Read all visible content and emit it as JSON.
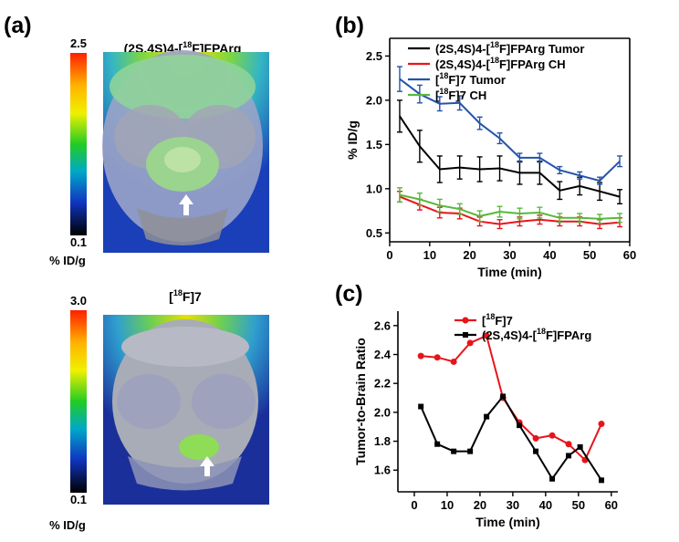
{
  "panels": {
    "a": {
      "label": "(a)",
      "top": {
        "title_prefix": "(2S,4S)4-[",
        "title_sup": "18",
        "title_suffix": "F]FPArg",
        "scale_max": "2.5",
        "scale_min": "0.1",
        "unit": "% ID/g"
      },
      "bottom": {
        "title_prefix": "[",
        "title_sup": "18",
        "title_suffix": "F]7",
        "scale_max": "3.0",
        "scale_min": "0.1",
        "unit": "% ID/g"
      }
    },
    "b": {
      "label": "(b)"
    },
    "c": {
      "label": "(c)"
    }
  },
  "colors": {
    "black": "#000000",
    "red": "#e8141b",
    "blue": "#2553a8",
    "green": "#57b93a"
  },
  "chart_data": [
    {
      "id": "b",
      "type": "line",
      "xlabel": "Time (min)",
      "ylabel": "% ID/g",
      "xlim": [
        0,
        60
      ],
      "ylim": [
        0.4,
        2.7
      ],
      "xticks": [
        0,
        10,
        20,
        30,
        40,
        50,
        60
      ],
      "yticks": [
        0.5,
        1.0,
        1.5,
        2.0,
        2.5
      ],
      "ytick_labels": [
        "0.5",
        "1.0",
        "1.5",
        "2.0",
        "2.5"
      ],
      "x": [
        2.5,
        7.5,
        12.5,
        17.5,
        22.5,
        27.5,
        32.5,
        37.5,
        42.5,
        47.5,
        52.5,
        57.5
      ],
      "series": [
        {
          "name": "(2S,4S)4-[18F]FPArg Tumor",
          "legend_prefix": "(2S,4S)4-[",
          "legend_sup": "18",
          "legend_suffix": "F]FPArg Tumor",
          "color": "#000000",
          "values": [
            1.82,
            1.48,
            1.22,
            1.24,
            1.22,
            1.23,
            1.18,
            1.18,
            0.98,
            1.03,
            0.97,
            0.91
          ],
          "errors": [
            0.18,
            0.18,
            0.15,
            0.13,
            0.14,
            0.14,
            0.13,
            0.13,
            0.1,
            0.1,
            0.1,
            0.08
          ]
        },
        {
          "name": "(2S,4S)4-[18F]FPArg CH",
          "legend_prefix": "(2S,4S)4-[",
          "legend_sup": "18",
          "legend_suffix": "F]FPArg CH",
          "color": "#e8141b",
          "values": [
            0.91,
            0.82,
            0.73,
            0.72,
            0.63,
            0.6,
            0.63,
            0.65,
            0.63,
            0.63,
            0.6,
            0.62
          ],
          "errors": [
            0.06,
            0.06,
            0.06,
            0.06,
            0.05,
            0.05,
            0.05,
            0.05,
            0.05,
            0.05,
            0.05,
            0.05
          ]
        },
        {
          "name": "[18F]7 Tumor",
          "legend_prefix": "[",
          "legend_sup": "18",
          "legend_suffix": "F]7 Tumor",
          "color": "#2553a8",
          "values": [
            2.24,
            2.07,
            1.96,
            1.97,
            1.74,
            1.57,
            1.35,
            1.35,
            1.21,
            1.15,
            1.09,
            1.31
          ],
          "errors": [
            0.14,
            0.1,
            0.08,
            0.08,
            0.07,
            0.06,
            0.05,
            0.05,
            0.04,
            0.04,
            0.04,
            0.06
          ]
        },
        {
          "name": "[18F]7 CH",
          "legend_prefix": "[",
          "legend_sup": "18",
          "legend_suffix": "F]7 CH",
          "color": "#57b93a",
          "values": [
            0.93,
            0.88,
            0.81,
            0.77,
            0.69,
            0.74,
            0.72,
            0.73,
            0.67,
            0.67,
            0.66,
            0.67
          ],
          "errors": [
            0.08,
            0.07,
            0.07,
            0.06,
            0.06,
            0.06,
            0.06,
            0.06,
            0.05,
            0.05,
            0.05,
            0.05
          ]
        }
      ]
    },
    {
      "id": "c",
      "type": "line",
      "xlabel": "Time (min)",
      "ylabel": "Tumor-to-Brain Ratio",
      "xlim": [
        -5,
        62
      ],
      "ylim": [
        1.45,
        2.7
      ],
      "xticks": [
        0,
        10,
        20,
        30,
        40,
        50,
        60
      ],
      "yticks": [
        1.6,
        1.8,
        2.0,
        2.2,
        2.4,
        2.6
      ],
      "ytick_labels": [
        "1.6",
        "1.8",
        "2.0",
        "2.2",
        "2.4",
        "2.6"
      ],
      "x": [
        2,
        7,
        12,
        17,
        22,
        27,
        32,
        37,
        42,
        47,
        52,
        57
      ],
      "series": [
        {
          "name": "[18F]7",
          "legend_prefix": "[",
          "legend_sup": "18",
          "legend_suffix": "F]7",
          "color": "#e8141b",
          "marker": "circle",
          "x": [
            2,
            7,
            12,
            17,
            22,
            27,
            32,
            37,
            42,
            47,
            52,
            57
          ],
          "values": [
            2.39,
            2.38,
            2.35,
            2.48,
            2.53,
            2.1,
            1.93,
            1.82,
            1.84,
            1.78,
            1.67,
            1.92
          ]
        },
        {
          "name": "(2S,4S)4-[18F]FPArg",
          "legend_prefix": "(2S,4S)4-[",
          "legend_sup": "18",
          "legend_suffix": "F]FPArg",
          "color": "#000000",
          "marker": "square",
          "x": [
            2,
            7,
            12,
            17,
            22,
            27,
            32,
            37,
            42,
            47,
            50.5,
            57
          ],
          "values": [
            2.04,
            1.78,
            1.73,
            1.73,
            1.97,
            2.11,
            1.91,
            1.73,
            1.54,
            1.7,
            1.76,
            1.53
          ]
        }
      ]
    }
  ]
}
